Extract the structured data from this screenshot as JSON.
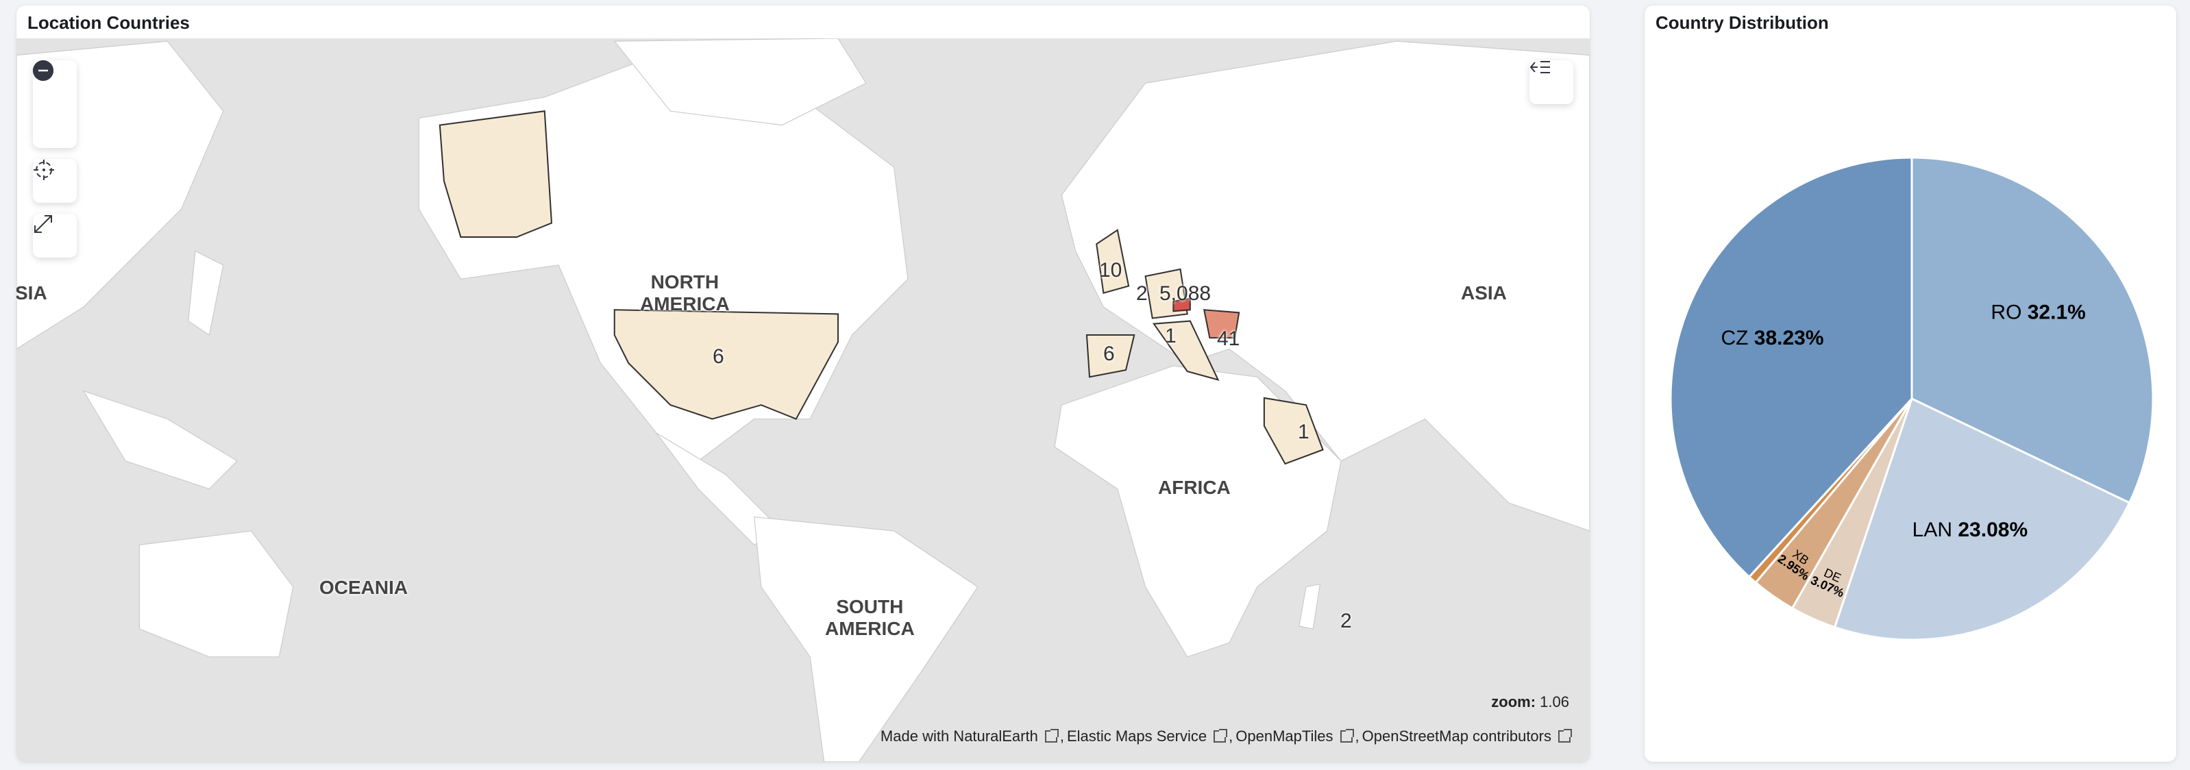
{
  "map_panel": {
    "title": "Location Countries",
    "controls": {
      "zoom_in": "plus-circle-icon",
      "zoom_out": "minus-circle-icon",
      "locate": "crosshair-icon",
      "fullscreen": "expand-icon",
      "layers": "layer-list-icon"
    },
    "region_labels": {
      "na1": "NORTH",
      "na2": "AMERICA",
      "asia": "ASIA",
      "asia_left": "SIA",
      "africa": "AFRICA",
      "oceania": "OCEANIA",
      "sa1": "SOUTH",
      "sa2": "AMERICA"
    },
    "counts": {
      "usa": "6",
      "uk": "10",
      "fr": "2",
      "cz": "5,088",
      "it": "1",
      "ro": "41",
      "es": "6",
      "sa": "1",
      "mg": "2"
    },
    "zoom_label": "zoom:",
    "zoom_value": "1.06",
    "attribution": [
      "Made with NaturalEarth",
      "Elastic Maps Service",
      "OpenMapTiles",
      "OpenStreetMap contributors"
    ],
    "colors": {
      "ocean": "#e3e3e3",
      "land": "#ffffff",
      "low": "#f6ead4",
      "high": "#e3907a",
      "max": "#d9534f"
    }
  },
  "pie_panel": {
    "title": "Country Distribution"
  },
  "chart_data": {
    "type": "pie",
    "title": "Country Distribution",
    "slices": [
      {
        "label": "RO",
        "value": 32.1,
        "text": "32.1%",
        "color": "#93b1d0"
      },
      {
        "label": "LAN",
        "value": 23.08,
        "text": "23.08%",
        "color": "#c0d0e2"
      },
      {
        "label": "DE",
        "value": 3.07,
        "text": "3.07%",
        "color": "#e2cfbd"
      },
      {
        "label": "XB",
        "value": 2.95,
        "text": "2.95%",
        "color": "#d6a983"
      },
      {
        "label": "",
        "value": 0.57,
        "text": "",
        "color": "#d08d4e"
      },
      {
        "label": "CZ",
        "value": 38.23,
        "text": "38.23%",
        "color": "#6b93bd"
      }
    ]
  }
}
